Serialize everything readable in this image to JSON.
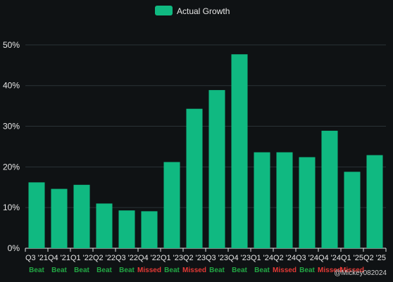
{
  "chart_data": {
    "type": "bar",
    "categories": [
      "Q3 '21",
      "Q4 '21",
      "Q1 '22",
      "Q2 '22",
      "Q3 '22",
      "Q4 '22",
      "Q1 '23",
      "Q2 '23",
      "Q3 '23",
      "Q4 '23",
      "Q1 '24",
      "Q2 '24",
      "Q3 '24",
      "Q4 '24",
      "Q1 '25",
      "Q2 '25"
    ],
    "series": [
      {
        "name": "Actual Growth",
        "values": [
          16.2,
          14.6,
          15.6,
          11.0,
          9.3,
          9.1,
          21.2,
          34.3,
          38.9,
          47.7,
          23.6,
          23.6,
          22.4,
          28.9,
          18.8,
          22.9
        ]
      }
    ],
    "status": [
      "Beat",
      "Beat",
      "Beat",
      "Beat",
      "Beat",
      "Missed",
      "Beat",
      "Missed",
      "Beat",
      "Beat",
      "Beat",
      "Missed",
      "Beat",
      "Missed",
      "Missed",
      ""
    ],
    "y_ticks": [
      "0%",
      "10%",
      "20%",
      "30%",
      "40%",
      "50%"
    ],
    "ylim": [
      0,
      55
    ],
    "grid": true,
    "legend_position": "top-center",
    "colors": {
      "bar": "#10b981",
      "beat": "#22a845",
      "missed": "#e53935",
      "grid": "#2a3236",
      "background": "#0f1214"
    }
  },
  "legend": {
    "label": "Actual Growth"
  },
  "watermark": {
    "text": "@Mickey082024"
  }
}
